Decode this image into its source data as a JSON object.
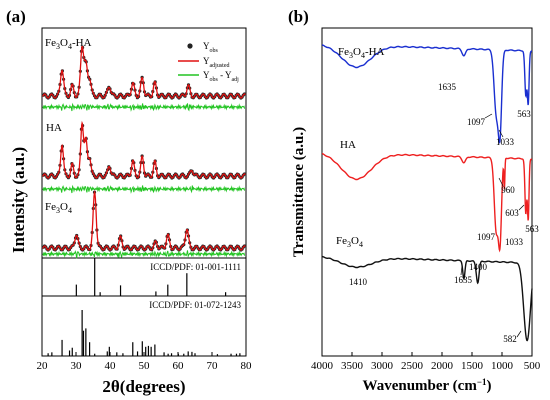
{
  "panel_a": {
    "letter": "(a)",
    "ylabel": "Intensity (a.u.)",
    "xlabel": "2θ(degrees)",
    "legend": {
      "obs": "Y",
      "obs_sub": "obs",
      "adjusted": "Y",
      "adjusted_sub": "adjusted",
      "diff": "Y",
      "diff_sub_1": "obs",
      "diff_mid": " - Y",
      "diff_sub_2": "adj"
    },
    "ref1": "ICCD/PDF: 01-001-1111",
    "ref2": "ICCD/PDF: 01-072-1243",
    "label_fe_ha": {
      "pre": "Fe",
      "s1": "3",
      "mid": "O",
      "s2": "4",
      "post": "-HA"
    },
    "label_ha": "HA",
    "label_fe": {
      "pre": "Fe",
      "s1": "3",
      "mid": "O",
      "s2": "4"
    }
  },
  "panel_b": {
    "letter": "(b)",
    "ylabel": "Transmittance (a.u.)",
    "xlabel": "Wavenumber (cm",
    "xlabel_sup": "−1",
    "xlabel_end": ")",
    "label_fe_ha": {
      "pre": "Fe",
      "s1": "3",
      "mid": "O",
      "s2": "4",
      "post": "-HA"
    },
    "label_ha": "HA",
    "label_fe": {
      "pre": "Fe",
      "s1": "3",
      "mid": "O",
      "s2": "4"
    },
    "peaks": {
      "fe_ha": [
        "1635",
        "1097",
        "1033",
        "563"
      ],
      "ha": [
        "960",
        "603",
        "563",
        "1097",
        "1033"
      ],
      "fe": [
        "1410",
        "1635",
        "1400",
        "582"
      ]
    }
  },
  "chart_data": [
    {
      "type": "line",
      "title": "",
      "xlabel": "2θ(degrees)",
      "ylabel": "Intensity (a.u.)",
      "xlim": [
        20,
        80
      ],
      "x_ticks": [
        20,
        30,
        40,
        50,
        60,
        70,
        80
      ],
      "y_ticks": [],
      "legend_position": "top-right",
      "series": [
        {
          "name": "Fe3O4-HA",
          "peaks_2theta": [
            25.9,
            28.9,
            31.8,
            32.9,
            34.0,
            39.8,
            46.7,
            49.5,
            53.2,
            63.0
          ],
          "color": "#e01010"
        },
        {
          "name": "HA",
          "peaks_2theta": [
            25.9,
            28.9,
            31.8,
            32.9,
            34.0,
            39.8,
            46.7,
            49.5,
            53.2,
            64.1
          ],
          "color": "#e01010"
        },
        {
          "name": "Fe3O4",
          "peaks_2theta": [
            30.1,
            35.5,
            43.1,
            53.5,
            57.0,
            62.6
          ],
          "color": "#e01010"
        }
      ],
      "reference_patterns": [
        {
          "name": "ICCD/PDF: 01-001-1111",
          "lines_2theta": [
            30.1,
            35.5,
            37.1,
            43.1,
            53.5,
            57.0,
            62.6,
            74.0
          ]
        },
        {
          "name": "ICCD/PDF: 01-072-1243",
          "lines_2theta": [
            21.8,
            22.9,
            25.9,
            28.1,
            28.9,
            31.8,
            32.2,
            32.9,
            34.0,
            35.5,
            39.2,
            39.8,
            42.0,
            43.8,
            46.7,
            48.1,
            49.5,
            50.5,
            51.3,
            52.1,
            53.2,
            55.9,
            57.1,
            58.1,
            60.1,
            61.7,
            63.0,
            64.1,
            65.0,
            71.6,
            75.6,
            77.2,
            78.2
          ]
        }
      ]
    },
    {
      "type": "line",
      "title": "",
      "xlabel": "Wavenumber (cm−1)",
      "ylabel": "Transmittance (a.u.)",
      "xlim": [
        4000,
        500
      ],
      "x_ticks": [
        4000,
        3500,
        3000,
        2500,
        2000,
        1500,
        1000,
        500
      ],
      "series": [
        {
          "name": "Fe3O4-HA",
          "color": "#1a2fd0",
          "band_minima_cm": [
            3430,
            1635,
            1097,
            1033,
            603,
            563
          ]
        },
        {
          "name": "HA",
          "color": "#ee2020",
          "band_minima_cm": [
            3430,
            1635,
            1097,
            1033,
            960,
            603,
            563
          ]
        },
        {
          "name": "Fe3O4",
          "color": "#111111",
          "band_minima_cm": [
            3430,
            1635,
            1410,
            1400,
            582
          ]
        }
      ]
    }
  ]
}
